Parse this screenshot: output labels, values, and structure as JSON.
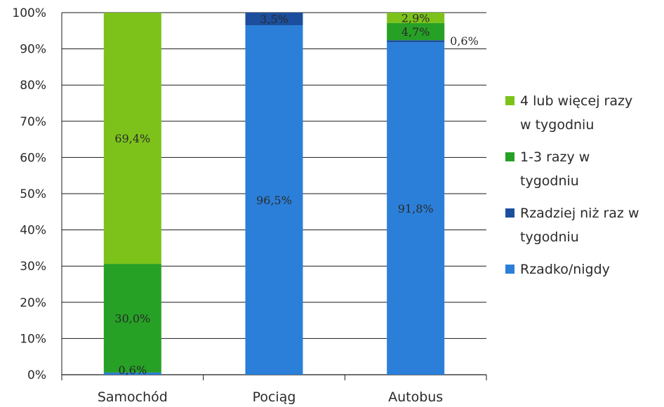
{
  "chart_data": {
    "type": "bar",
    "stacked": true,
    "percent": true,
    "categories": [
      "Samochód",
      "Pociąg",
      "Autobus"
    ],
    "series": [
      {
        "name": "Rzadko/nigdy",
        "values": [
          0.6,
          96.5,
          91.8
        ],
        "labels": [
          "0,6%",
          "96,5%",
          "91,8%"
        ],
        "color": "#2b7fd9"
      },
      {
        "name": "Rzadziej niż raz w tygodniu",
        "values": [
          0,
          3.5,
          0.6
        ],
        "labels": [
          "",
          "3,5%",
          "0,6%"
        ],
        "color": "#1b4f9e"
      },
      {
        "name": "1-3 razy w tygodniu",
        "values": [
          30.0,
          0,
          4.7
        ],
        "labels": [
          "30,0%",
          "",
          "4,7%"
        ],
        "color": "#26a025"
      },
      {
        "name": "4 lub więcej razy w tygodniu",
        "values": [
          69.4,
          0,
          2.9
        ],
        "labels": [
          "69,4%",
          "",
          "2,9%"
        ],
        "color": "#7cc21b"
      }
    ],
    "ylim": [
      0,
      100
    ],
    "yticks": [
      "0%",
      "10%",
      "20%",
      "30%",
      "40%",
      "50%",
      "60%",
      "70%",
      "80%",
      "90%",
      "100%"
    ],
    "grid": true,
    "legend_position": "right",
    "legend": [
      {
        "lines": [
          "4 lub więcej razy",
          "w tygodniu"
        ],
        "color": "#7cc21b"
      },
      {
        "lines": [
          "1-3 razy w",
          "tygodniu"
        ],
        "color": "#26a025"
      },
      {
        "lines": [
          "Rzadziej niż raz w",
          "tygodniu"
        ],
        "color": "#1b4f9e"
      },
      {
        "lines": [
          "Rzadko/nigdy"
        ],
        "color": "#2b7fd9"
      }
    ]
  }
}
